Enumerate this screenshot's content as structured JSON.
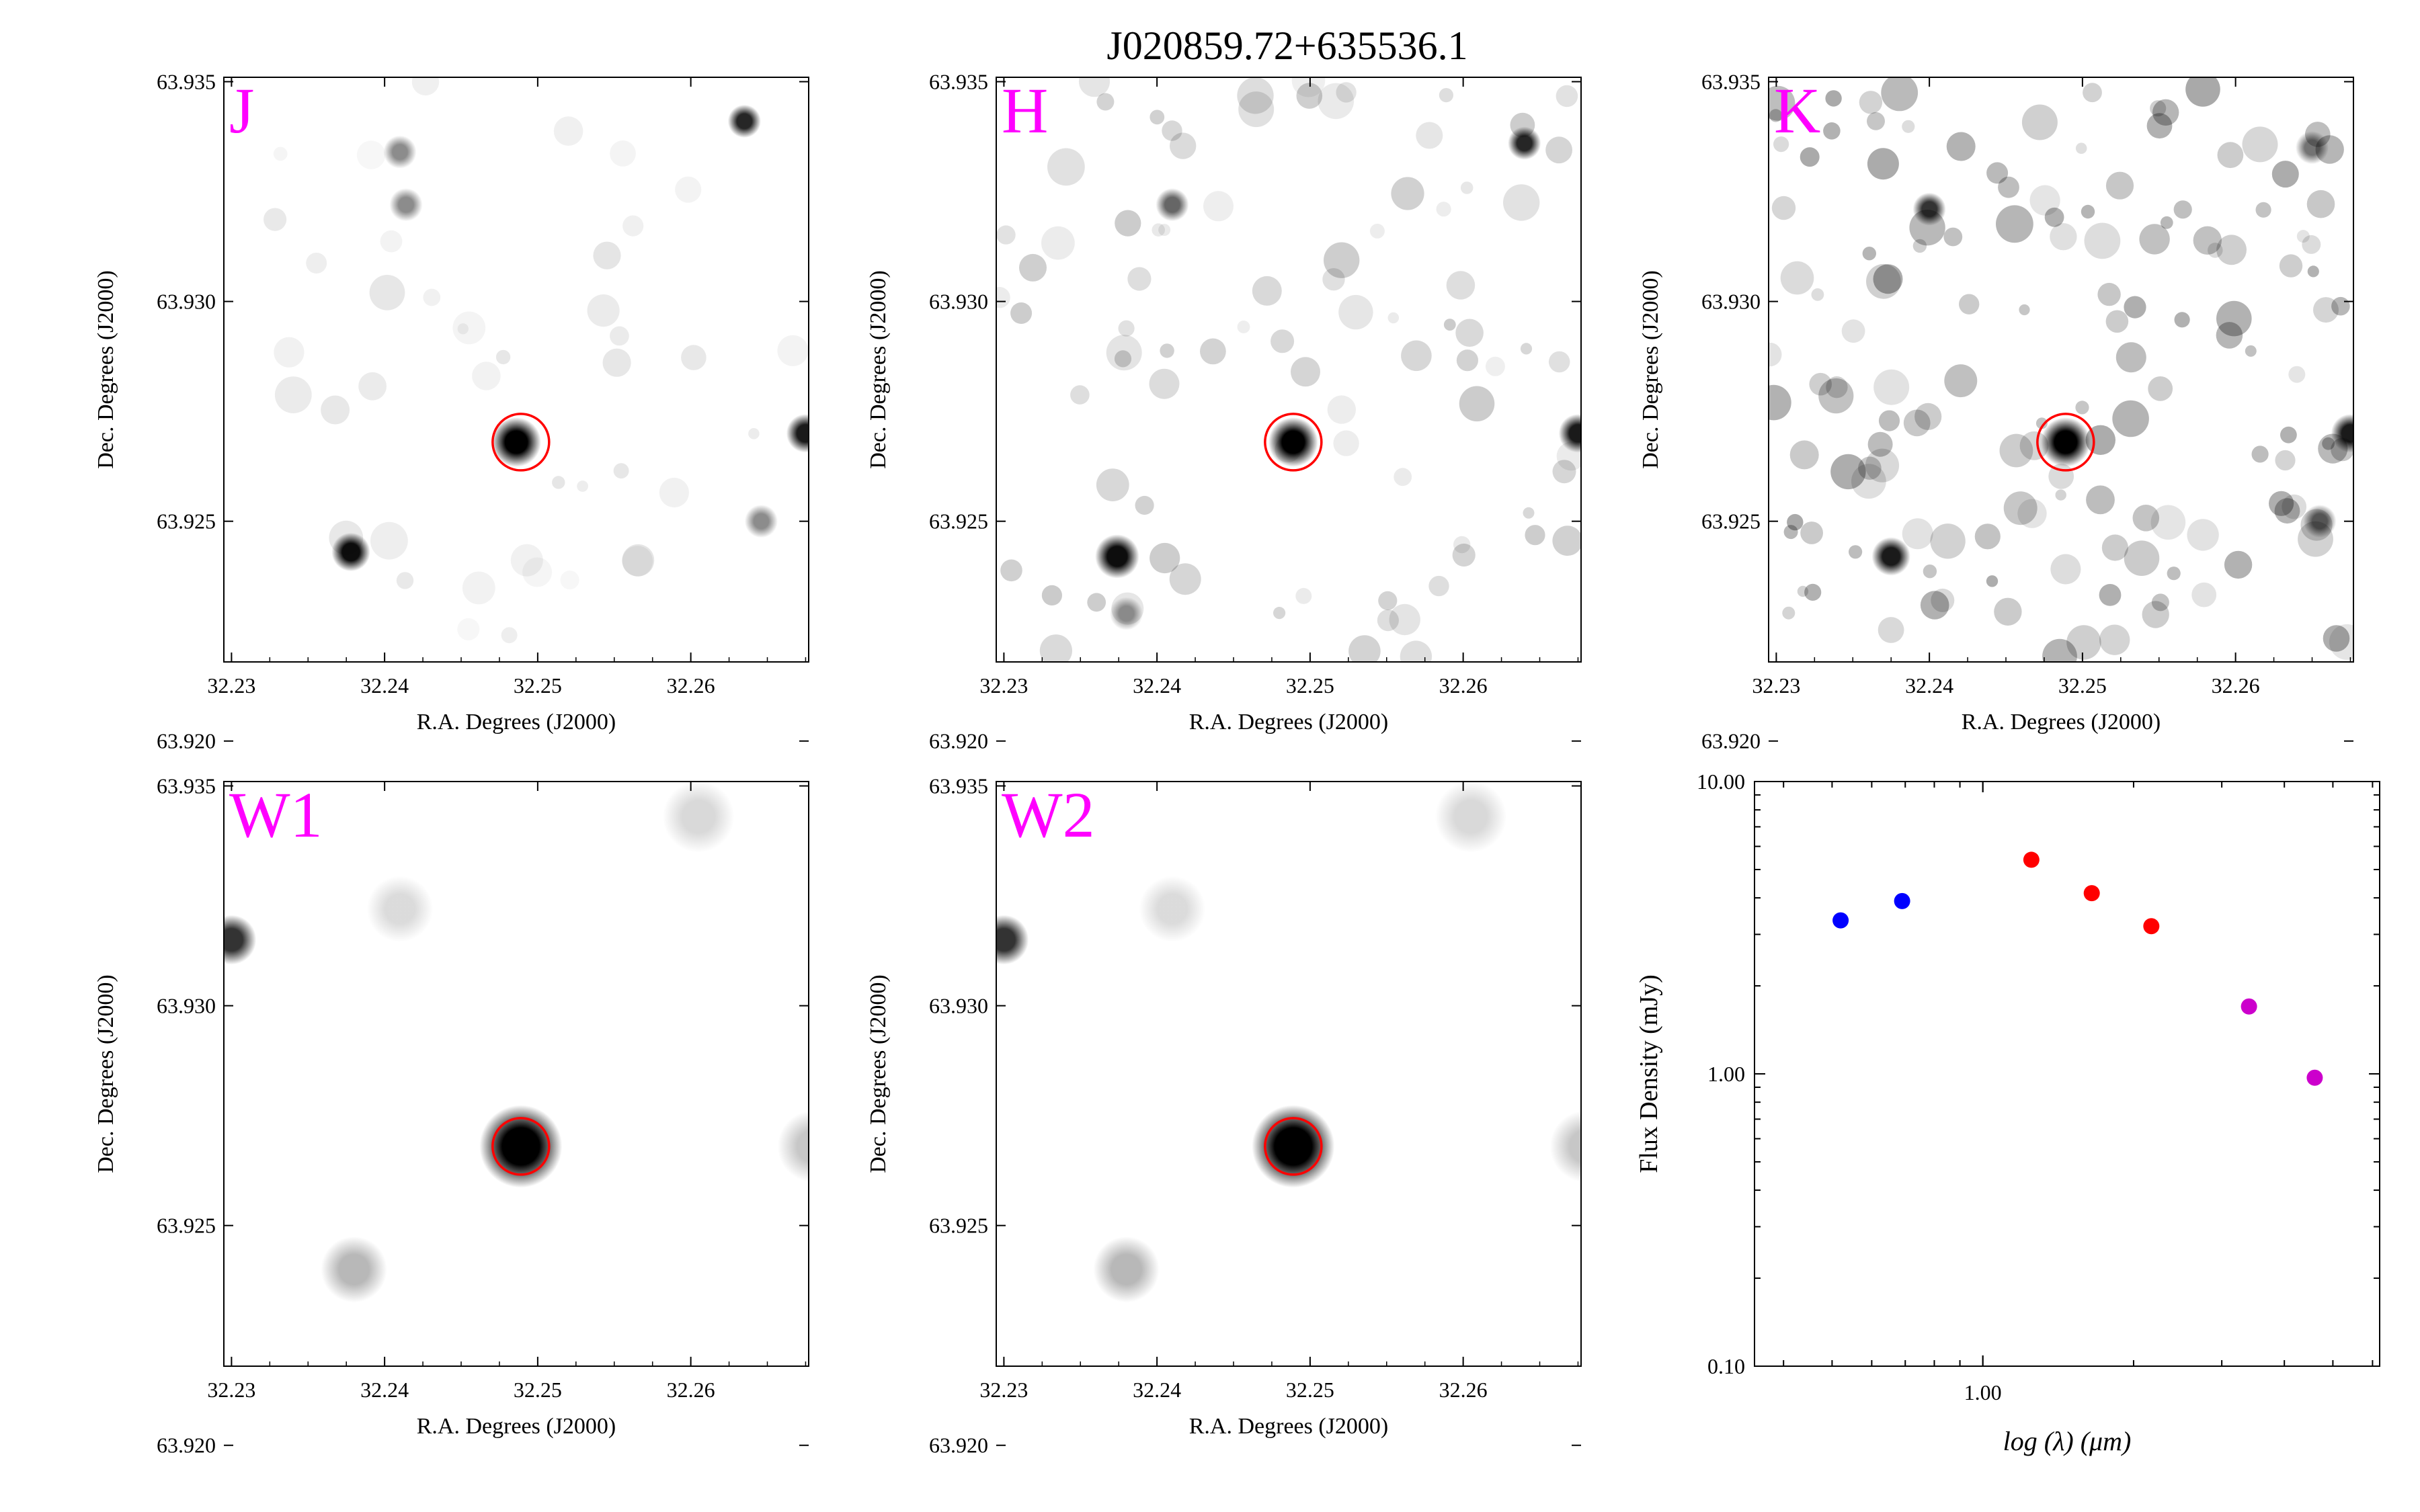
{
  "figure": {
    "title": "J020859.72+635536.1"
  },
  "cutout_panels": [
    {
      "id": "J",
      "band_label": "J",
      "noise_level": 0.06,
      "stars": [
        [
          32.2486,
          63.9268,
          1.0,
          0.0009
        ],
        [
          32.2378,
          63.9243,
          0.95,
          0.0007
        ],
        [
          32.2635,
          63.9341,
          0.85,
          0.0006
        ],
        [
          32.241,
          63.9334,
          0.45,
          0.0006
        ],
        [
          32.2414,
          63.9322,
          0.45,
          0.0006
        ],
        [
          32.2675,
          63.927,
          0.9,
          0.0007
        ],
        [
          32.2646,
          63.925,
          0.45,
          0.0006
        ]
      ]
    },
    {
      "id": "H",
      "band_label": "H",
      "noise_level": 0.12,
      "stars": [
        [
          32.2489,
          63.9268,
          1.0,
          0.0009
        ],
        [
          32.2374,
          63.9242,
          0.95,
          0.0008
        ],
        [
          32.264,
          63.9336,
          0.85,
          0.0006
        ],
        [
          32.241,
          63.9322,
          0.6,
          0.0006
        ],
        [
          32.2675,
          63.927,
          0.9,
          0.0007
        ],
        [
          32.238,
          63.9229,
          0.4,
          0.0006
        ]
      ]
    },
    {
      "id": "K",
      "band_label": "K",
      "noise_level": 0.2,
      "stars": [
        [
          32.2489,
          63.9268,
          1.0,
          0.0009
        ],
        [
          32.2375,
          63.9242,
          0.9,
          0.0007
        ],
        [
          32.24,
          63.9321,
          0.8,
          0.0006
        ],
        [
          32.2675,
          63.927,
          0.9,
          0.0007
        ],
        [
          32.2655,
          63.925,
          0.6,
          0.0006
        ],
        [
          32.265,
          63.9335,
          0.55,
          0.0006
        ]
      ]
    },
    {
      "id": "W1",
      "band_label": "W1",
      "noise_level": 0.0,
      "stars": [
        [
          32.2489,
          63.9268,
          1.0,
          0.0015
        ],
        [
          32.238,
          63.924,
          0.28,
          0.0012
        ],
        [
          32.241,
          63.9322,
          0.14,
          0.0012
        ],
        [
          32.2605,
          63.9343,
          0.15,
          0.0013
        ],
        [
          32.23,
          63.9315,
          0.8,
          0.0009
        ],
        [
          32.268,
          63.9268,
          0.22,
          0.0013
        ]
      ]
    },
    {
      "id": "W2",
      "band_label": "W2",
      "noise_level": 0.0,
      "stars": [
        [
          32.2489,
          63.9268,
          1.0,
          0.0015
        ],
        [
          32.238,
          63.924,
          0.28,
          0.0012
        ],
        [
          32.241,
          63.9322,
          0.14,
          0.0012
        ],
        [
          32.2605,
          63.9343,
          0.15,
          0.0013
        ],
        [
          32.23,
          63.9315,
          0.8,
          0.0009
        ],
        [
          32.268,
          63.9268,
          0.22,
          0.0013
        ]
      ]
    }
  ],
  "cutout_axes": {
    "xlabel": "R.A. Degrees (J2000)",
    "ylabel": "Dec. Degrees (J2000)",
    "xlim": [
      32.2295,
      32.2677
    ],
    "ylim": [
      63.9218,
      63.9351
    ],
    "xticks": [
      32.23,
      32.24,
      32.25,
      32.26
    ],
    "xtick_labels": [
      "32.23",
      "32.24",
      "32.25",
      "32.26"
    ],
    "yticks": [
      63.92,
      63.925,
      63.93,
      63.935
    ],
    "ytick_labels": [
      "63.920",
      "63.925",
      "63.930",
      "63.935"
    ],
    "target": {
      "ra": 32.2489,
      "dec": 63.9268
    },
    "colors": {
      "band_label": "#ff00ff",
      "target_circle": "#ff0000",
      "star": "#000000"
    }
  },
  "chart_data": {
    "type": "scatter",
    "xlabel": "log (λ) (μm)",
    "ylabel": "Flux Density (mJy)",
    "xscale": "log",
    "yscale": "log",
    "xlim": [
      0.35,
      6.2
    ],
    "ylim": [
      0.1,
      10.0
    ],
    "xticks": [
      1.0
    ],
    "xtick_labels": [
      "1.00"
    ],
    "yticks": [
      0.1,
      1.0,
      10.0
    ],
    "ytick_labels": [
      "0.10",
      "1.00",
      "10.00"
    ],
    "grid": false,
    "series": [
      {
        "color": "#0000ff",
        "x": [
          0.52,
          0.69
        ],
        "y": [
          3.35,
          3.9
        ]
      },
      {
        "color": "#ff0000",
        "x": [
          1.25,
          1.65,
          2.17
        ],
        "y": [
          5.4,
          4.15,
          3.2
        ]
      },
      {
        "color": "#cc00cc",
        "x": [
          3.4,
          4.6
        ],
        "y": [
          1.7,
          0.97
        ]
      }
    ]
  }
}
